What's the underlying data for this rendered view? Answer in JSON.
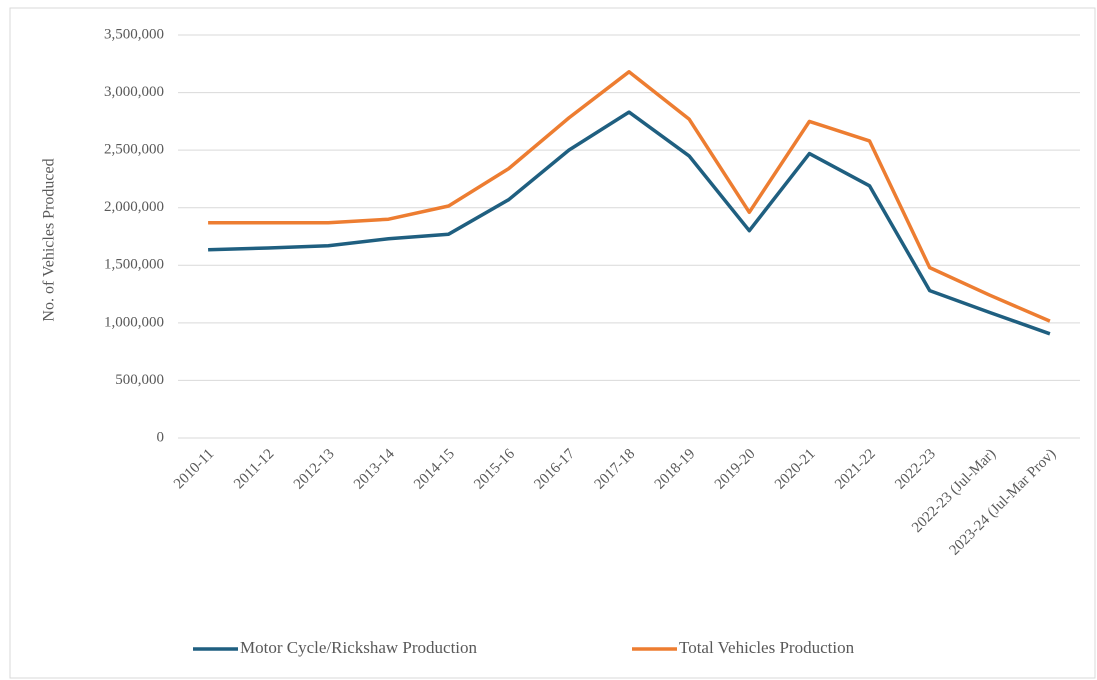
{
  "chart_data": {
    "type": "line",
    "y_label": "No. of Vehicles Produced",
    "categories": [
      "2010-11",
      "2011-12",
      "2012-13",
      "2013-14",
      "2014-15",
      "2015-16",
      "2016-17",
      "2017-18",
      "2018-19",
      "2019-20",
      "2020-21",
      "2021-22",
      "2022-23",
      "2022-23 (Jul-Mar)",
      "2023-24 (Jul-Mar Prov)"
    ],
    "series": [
      {
        "name": "Motor Cycle/Rickshaw Production",
        "color": "#1f5f80",
        "values": [
          1635000,
          1650000,
          1670000,
          1730000,
          1770000,
          2070000,
          2500000,
          2830000,
          2450000,
          1800000,
          2470000,
          2190000,
          1280000,
          1090000,
          905000
        ]
      },
      {
        "name": "Total Vehicles Production",
        "color": "#ed7d31",
        "values": [
          1870000,
          1870000,
          1870000,
          1900000,
          2015000,
          2340000,
          2780000,
          3180000,
          2770000,
          1960000,
          2750000,
          2580000,
          1480000,
          1240000,
          1015000
        ]
      }
    ],
    "ylim": [
      0,
      3500000
    ],
    "yticks": [
      0,
      {
        "value": 500000,
        "label": "500,000"
      },
      {
        "value": 1000000,
        "label": "1,000,000"
      },
      {
        "value": 1500000,
        "label": "1,500,000"
      },
      {
        "value": 2000000,
        "label": "2,000,000"
      },
      {
        "value": 2500000,
        "label": "2,500,000"
      },
      {
        "value": 3000000,
        "label": "3,000,000"
      },
      {
        "value": 3500000,
        "label": "3,500,000"
      }
    ],
    "grid": true,
    "legend": "bottom"
  }
}
